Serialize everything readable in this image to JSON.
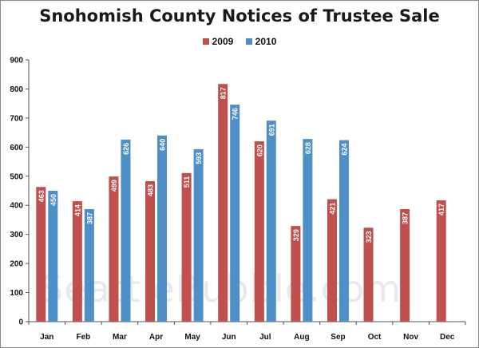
{
  "chart_data": {
    "type": "bar",
    "title": "Snohomish County Notices of Trustee Sale",
    "categories": [
      "Jan",
      "Feb",
      "Mar",
      "Apr",
      "May",
      "Jun",
      "Jul",
      "Aug",
      "Sep",
      "Oct",
      "Nov",
      "Dec"
    ],
    "series": [
      {
        "name": "2009",
        "color": "#c0504d",
        "values": [
          463,
          414,
          499,
          483,
          511,
          817,
          620,
          329,
          421,
          323,
          387,
          417
        ]
      },
      {
        "name": "2010",
        "color": "#4f8fc8",
        "values": [
          450,
          387,
          626,
          640,
          593,
          746,
          691,
          628,
          624,
          null,
          null,
          null
        ]
      }
    ],
    "data_labels": {
      "2009": [
        "463",
        "414",
        "499",
        "483",
        "511",
        "817",
        "620",
        "329",
        "421",
        "323",
        "387",
        "417"
      ],
      "2010": [
        "450",
        "387",
        "626",
        "640",
        "593",
        "746",
        "691",
        "628",
        "624",
        "",
        "",
        ""
      ]
    },
    "ylim": [
      0,
      900
    ],
    "yticks": [
      0,
      100,
      200,
      300,
      400,
      500,
      600,
      700,
      800,
      900
    ],
    "xlabel": "",
    "ylabel": "",
    "grid": false,
    "legend_position": "top"
  },
  "watermark": "SeattleBubble.com"
}
